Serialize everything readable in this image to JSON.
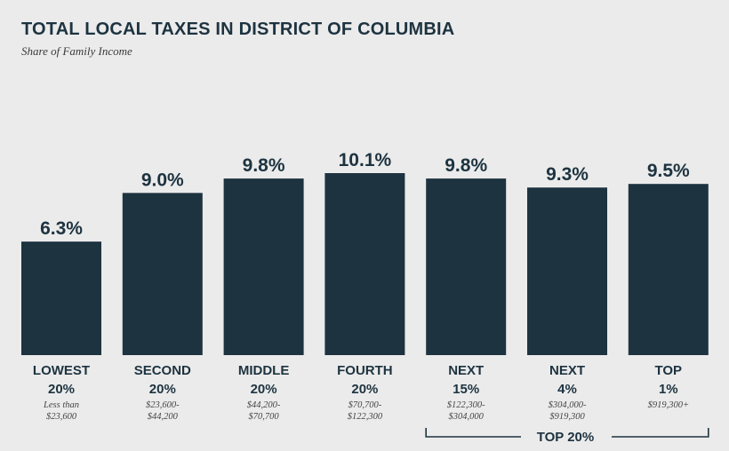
{
  "chart_data": {
    "type": "bar",
    "title": "TOTAL LOCAL TAXES IN DISTRICT OF COLUMBIA",
    "subtitle": "Share of Family Income",
    "categories": [
      {
        "line1": "LOWEST",
        "line2": "20%",
        "range1": "Less than",
        "range2": "$23,600"
      },
      {
        "line1": "SECOND",
        "line2": "20%",
        "range1": "$23,600-",
        "range2": "$44,200"
      },
      {
        "line1": "MIDDLE",
        "line2": "20%",
        "range1": "$44,200-",
        "range2": "$70,700"
      },
      {
        "line1": "FOURTH",
        "line2": "20%",
        "range1": "$70,700-",
        "range2": "$122,300"
      },
      {
        "line1": "NEXT",
        "line2": "15%",
        "range1": "$122,300-",
        "range2": "$304,000"
      },
      {
        "line1": "NEXT",
        "line2": "4%",
        "range1": "$304,000-",
        "range2": "$919,300"
      },
      {
        "line1": "TOP",
        "line2": "1%",
        "range1": "$919,300+",
        "range2": ""
      }
    ],
    "values": [
      6.3,
      9.0,
      9.8,
      10.1,
      9.8,
      9.3,
      9.5
    ],
    "value_labels": [
      "6.3%",
      "9.0%",
      "9.8%",
      "10.1%",
      "9.8%",
      "9.3%",
      "9.5%"
    ],
    "ylim": [
      0,
      10.1
    ],
    "bar_color": "#1d3340",
    "grid": false,
    "bracket": {
      "label": "TOP 20%",
      "from_index": 4,
      "to_index": 6
    }
  }
}
